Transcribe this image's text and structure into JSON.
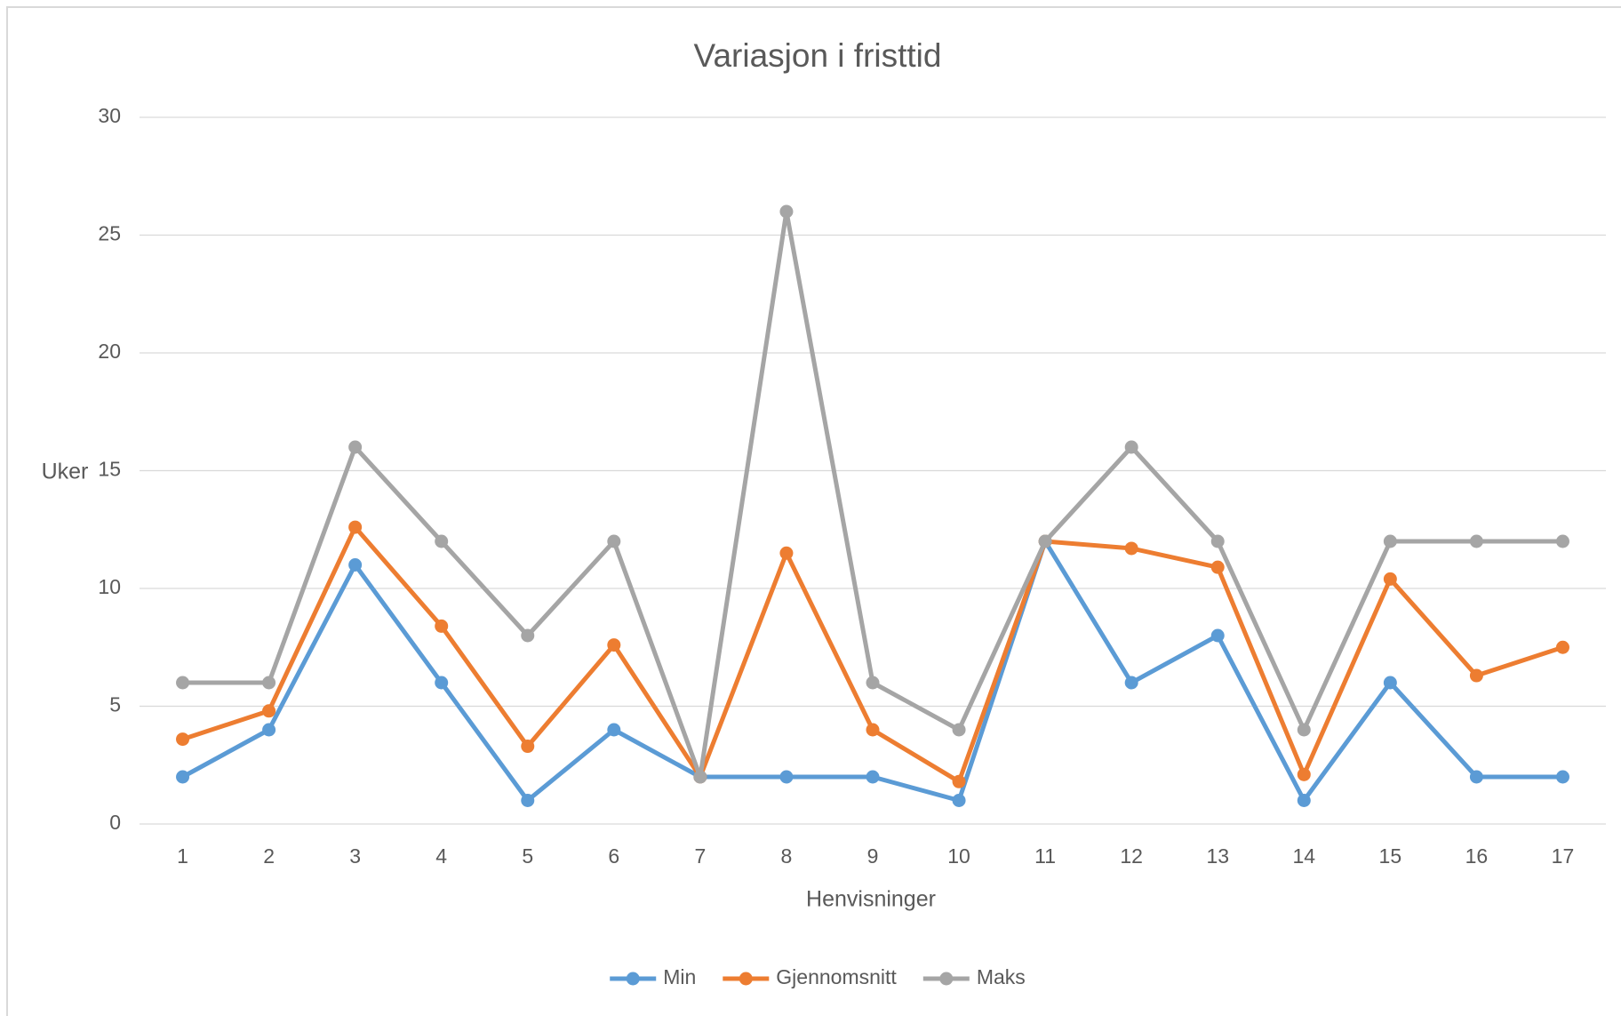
{
  "chart_data": {
    "type": "line",
    "title": "Variasjon i fristtid",
    "xlabel": "Henvisninger",
    "ylabel": "Uker",
    "categories": [
      "1",
      "2",
      "3",
      "4",
      "5",
      "6",
      "7",
      "8",
      "9",
      "10",
      "11",
      "12",
      "13",
      "14",
      "15",
      "16",
      "17"
    ],
    "series": [
      {
        "name": "Min",
        "color": "#5b9bd5",
        "values": [
          2,
          4,
          11,
          6,
          1,
          4,
          2,
          2,
          2,
          1,
          12,
          6,
          8,
          1,
          6,
          2,
          2
        ]
      },
      {
        "name": "Gjennomsnitt",
        "color": "#ed7d31",
        "values": [
          3.6,
          4.8,
          12.6,
          8.4,
          3.3,
          7.6,
          2,
          11.5,
          4,
          1.8,
          12,
          11.7,
          10.9,
          2.1,
          10.4,
          6.3,
          7.5
        ]
      },
      {
        "name": "Maks",
        "color": "#a5a5a5",
        "values": [
          6,
          6,
          16,
          12,
          8,
          12,
          2,
          26,
          6,
          4,
          12,
          16,
          12,
          4,
          12,
          12,
          12
        ]
      }
    ],
    "ylim": [
      0,
      30
    ],
    "yticks": [
      0,
      5,
      10,
      15,
      20,
      25,
      30
    ],
    "grid": true,
    "legend": "bottom"
  }
}
